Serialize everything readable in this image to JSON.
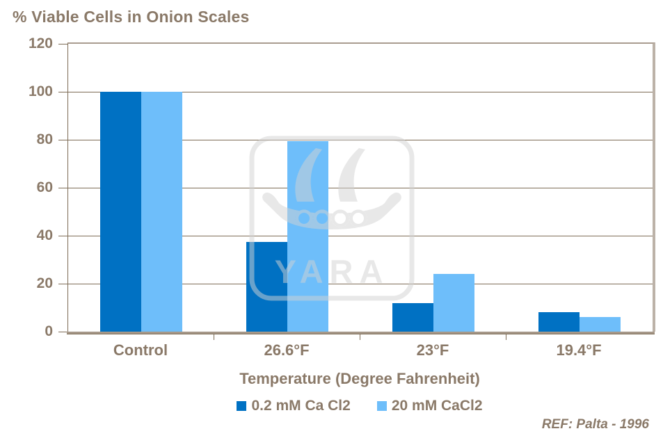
{
  "chart_data": {
    "type": "bar",
    "title": "% Viable Cells in Onion Scales",
    "xlabel": "Temperature (Degree Fahrenheit)",
    "ylabel": "",
    "categories": [
      "Control",
      "26.6°F",
      "23°F",
      "19.4°F"
    ],
    "series": [
      {
        "name": "0.2 mM Ca Cl2",
        "color": "#0071C3",
        "values": [
          100,
          37.5,
          12,
          8
        ]
      },
      {
        "name": "20 mM CaCl2",
        "color": "#6EBEFA",
        "values": [
          100,
          79.5,
          24,
          6
        ]
      }
    ],
    "ylim": [
      0,
      120
    ],
    "yticks": [
      0,
      20,
      40,
      60,
      80,
      100,
      120
    ],
    "grid": "horizontal",
    "legend_position": "bottom"
  },
  "watermark": {
    "label": "YARA",
    "icon": "viking-ship-logo"
  },
  "footnote": {
    "ref": "REF: Palta - 1996"
  },
  "colors": {
    "text": "#8A7968",
    "gridline": "#7D6B55",
    "axis_band": "#A69889",
    "frame_right": "#BCB2A8",
    "series_dark": "#0071C3",
    "series_light": "#6EBEFA",
    "watermark_gray": "#D3D3D3",
    "background": "#FFFFFF"
  }
}
